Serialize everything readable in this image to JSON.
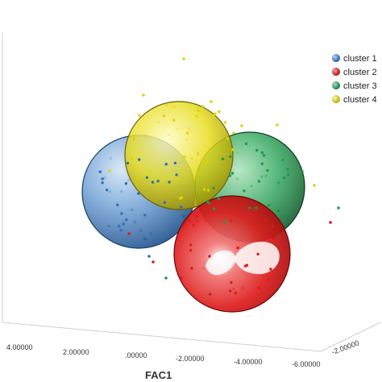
{
  "chart_data": {
    "type": "scatter",
    "title": "",
    "xlabel": "FAC1",
    "x_ticks": [
      "4.00000",
      "2.00000",
      ".00000",
      "-2.00000",
      "-4.00000",
      "-6.00000"
    ],
    "z_ticks": [
      "-2.00000"
    ],
    "legend_placement": "top-right",
    "grid": false,
    "series": [
      {
        "name": "cluster 1",
        "color": "#2f6fb5",
        "sphere_color": "#5a93cf"
      },
      {
        "name": "cluster 2",
        "color": "#d81c1c",
        "sphere_color": "#e02020"
      },
      {
        "name": "cluster 3",
        "color": "#1e9a4c",
        "sphere_color": "#2aa35a"
      },
      {
        "name": "cluster 4",
        "color": "#e0d400",
        "sphere_color": "#e8dc20"
      }
    ]
  }
}
